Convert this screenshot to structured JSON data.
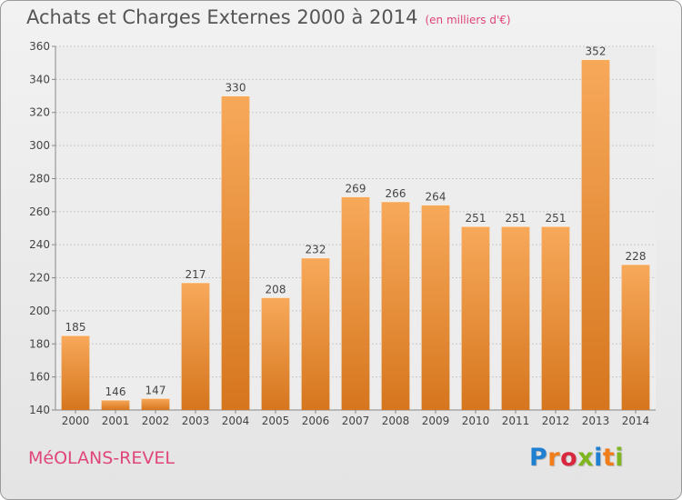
{
  "header": {
    "title": "Achats et Charges Externes 2000 à 2014",
    "unit": "(en milliers d'€)"
  },
  "footer": {
    "commune": "MéOLANS-REVEL",
    "brand_letters": [
      {
        "ch": "P",
        "color": "#1f7fd1"
      },
      {
        "ch": "r",
        "color": "#f07c1a"
      },
      {
        "ch": "o",
        "color": "#d8263d"
      },
      {
        "ch": "x",
        "color": "#7fb51f"
      },
      {
        "ch": "i",
        "color": "#1f7fd1"
      },
      {
        "ch": "t",
        "color": "#f07c1a"
      },
      {
        "ch": "i",
        "color": "#7fb51f"
      }
    ]
  },
  "colors": {
    "bar_light": "#f7a95a",
    "bar_dark": "#d6761e",
    "grid": "#c9c9c9",
    "text": "#444444"
  },
  "chart_data": {
    "type": "bar",
    "title": "Achats et Charges Externes 2000 à 2014",
    "subtitle": "(en milliers d'€)",
    "categories": [
      "2000",
      "2001",
      "2002",
      "2003",
      "2004",
      "2005",
      "2006",
      "2007",
      "2008",
      "2009",
      "2010",
      "2011",
      "2012",
      "2013",
      "2014"
    ],
    "values": [
      185,
      146,
      147,
      217,
      330,
      208,
      232,
      269,
      266,
      264,
      251,
      251,
      251,
      352,
      228
    ],
    "ylim": [
      140,
      360
    ],
    "yticks": [
      140,
      160,
      180,
      200,
      220,
      240,
      260,
      280,
      300,
      320,
      340,
      360
    ],
    "grid": true,
    "xlabel": "",
    "ylabel": ""
  }
}
